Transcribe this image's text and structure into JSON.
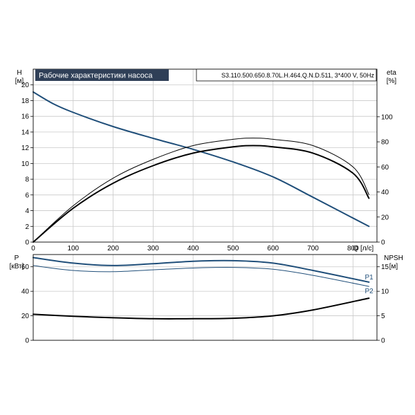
{
  "chart_data": [
    {
      "type": "line",
      "title": "Рабочие характеристики насоса",
      "model_label": "S3.110.500.650.8.70L.H.464.Q.N.D.511, 3*400 V, 50Hz",
      "left_axis": {
        "label": "H",
        "unit": "[м]",
        "ylim": [
          0,
          22
        ],
        "ticks": [
          0,
          2,
          4,
          6,
          8,
          10,
          12,
          14,
          16,
          18,
          20
        ]
      },
      "right_axis": {
        "label": "eta",
        "unit": "[%]",
        "ylim": [
          0,
          138
        ],
        "ticks": [
          0,
          20,
          40,
          60,
          80,
          100
        ]
      },
      "x_axis": {
        "label": "Q",
        "unit": "[л/с]",
        "xlim": [
          0,
          860
        ],
        "ticks": [
          0,
          100,
          200,
          300,
          400,
          500,
          600,
          700,
          800
        ]
      },
      "grid": true,
      "colors": {
        "head": "#1f4e79",
        "efficiency": "#000000"
      },
      "series": [
        {
          "axis": "left",
          "color_key": "head",
          "width": 2,
          "x": [
            0,
            50,
            100,
            200,
            300,
            400,
            500,
            600,
            700,
            840
          ],
          "y": [
            19.1,
            17.6,
            16.5,
            14.7,
            13.2,
            11.8,
            10.2,
            8.3,
            5.7,
            2.0
          ]
        },
        {
          "axis": "right",
          "color_key": "efficiency",
          "width": 2,
          "x": [
            0,
            100,
            200,
            300,
            400,
            500,
            550,
            600,
            700,
            800,
            840
          ],
          "y": [
            0,
            27,
            47,
            61,
            71,
            76,
            77,
            76,
            71,
            55,
            35
          ]
        },
        {
          "axis": "right",
          "color_key": "efficiency",
          "width": 1,
          "x": [
            0,
            100,
            200,
            300,
            400,
            500,
            550,
            600,
            700,
            800,
            840
          ],
          "y": [
            0,
            29,
            51,
            66,
            77,
            82,
            83,
            82,
            77,
            60,
            38
          ]
        }
      ]
    },
    {
      "type": "line",
      "left_axis": {
        "label": "P",
        "unit": "[кВт]",
        "ylim": [
          0,
          70
        ],
        "ticks": [
          0,
          20,
          40,
          60
        ]
      },
      "right_axis": {
        "label": "NPSH",
        "unit": "[м]",
        "ylim": [
          0,
          17.5
        ],
        "ticks": [
          0,
          5,
          10,
          15
        ]
      },
      "x_axis": {
        "xlim": [
          0,
          860
        ],
        "ticks": [
          0,
          100,
          200,
          300,
          400,
          500,
          600,
          700,
          800
        ]
      },
      "grid": true,
      "colors": {
        "power": "#1f4e79",
        "npsh": "#000000"
      },
      "series": [
        {
          "name": "P1",
          "axis": "left",
          "color_key": "power",
          "width": 2,
          "x": [
            0,
            100,
            200,
            300,
            400,
            500,
            600,
            700,
            840
          ],
          "y": [
            67.5,
            63,
            61,
            62.5,
            64.5,
            65,
            63,
            57,
            47.5
          ]
        },
        {
          "name": "P2",
          "axis": "left",
          "color_key": "power",
          "width": 1,
          "x": [
            0,
            100,
            200,
            300,
            400,
            500,
            600,
            700,
            840
          ],
          "y": [
            61,
            57,
            56,
            57.5,
            59,
            59.5,
            58,
            53,
            44
          ]
        },
        {
          "axis": "right",
          "color_key": "npsh",
          "width": 2,
          "x": [
            0,
            100,
            200,
            300,
            400,
            500,
            600,
            700,
            840
          ],
          "y": [
            5.3,
            4.9,
            4.6,
            4.4,
            4.4,
            4.5,
            5.0,
            6.2,
            8.6
          ]
        }
      ]
    }
  ]
}
